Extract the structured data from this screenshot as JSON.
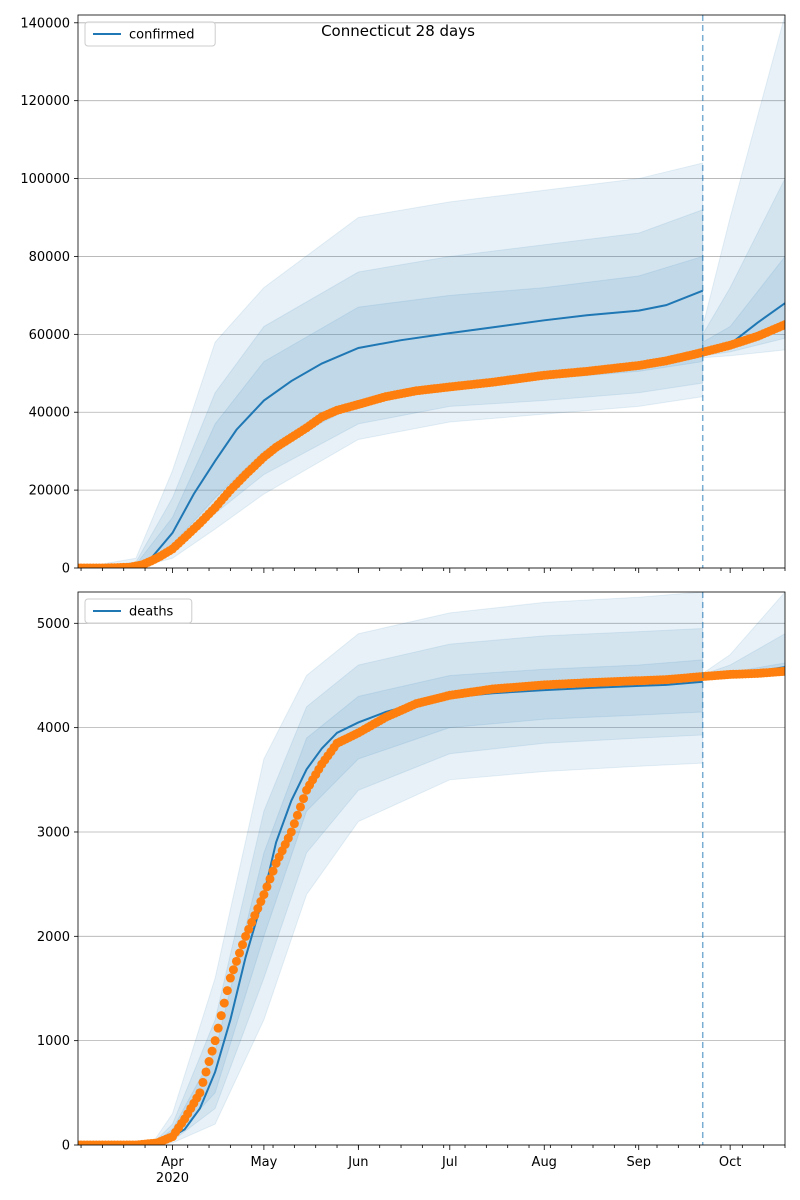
{
  "figure": {
    "title": "Connecticut 28 days"
  },
  "chart_data": [
    {
      "type": "line",
      "title": "Connecticut 28 days",
      "xlabel": "",
      "ylabel": "",
      "x_axis": {
        "range": [
          "2020-03-01",
          "2020-10-19"
        ],
        "tick_labels": [
          "Apr",
          "May",
          "Jun",
          "Jul",
          "Aug",
          "Sep",
          "Oct"
        ],
        "tick_dates": [
          "2020-04-01",
          "2020-05-01",
          "2020-06-01",
          "2020-07-01",
          "2020-08-01",
          "2020-09-01",
          "2020-10-01"
        ],
        "year_label": "2020"
      },
      "ylim": [
        0,
        142000
      ],
      "y_ticks": [
        0,
        20000,
        40000,
        60000,
        80000,
        100000,
        120000,
        140000
      ],
      "y_tick_labels": [
        "0",
        "20000",
        "40000",
        "60000",
        "80000",
        "100000",
        "120000",
        "140000"
      ],
      "grid": "horizontal",
      "legend": {
        "position": "top-left",
        "entries": [
          "confirmed"
        ]
      },
      "forecast_start": "2020-09-22",
      "colors": {
        "model": "#1f77b4",
        "observed": "#ff7f0e"
      },
      "series": [
        {
          "name": "confirmed",
          "kind": "model-median",
          "x": [
            "2020-03-01",
            "2020-03-15",
            "2020-03-20",
            "2020-03-25",
            "2020-04-01",
            "2020-04-08",
            "2020-04-15",
            "2020-04-22",
            "2020-05-01",
            "2020-05-10",
            "2020-05-20",
            "2020-06-01",
            "2020-06-15",
            "2020-07-01",
            "2020-07-15",
            "2020-08-01",
            "2020-08-15",
            "2020-09-01",
            "2020-09-10",
            "2020-09-22",
            "2020-09-22",
            "2020-10-01",
            "2020-10-10",
            "2020-10-19"
          ],
          "values": [
            0,
            0,
            400,
            2500,
            9000,
            19000,
            27500,
            35500,
            43000,
            48000,
            52500,
            56500,
            58500,
            60300,
            61800,
            63600,
            64900,
            66100,
            67500,
            71200,
            55200,
            57500,
            63000,
            68000
          ]
        },
        {
          "name": "",
          "kind": "model-band-inner",
          "x": [
            "2020-03-01",
            "2020-03-20",
            "2020-04-01",
            "2020-04-15",
            "2020-05-01",
            "2020-06-01",
            "2020-07-01",
            "2020-08-01",
            "2020-09-01",
            "2020-09-22",
            "2020-09-22",
            "2020-10-01",
            "2020-10-19"
          ],
          "lower": [
            0,
            200,
            6000,
            18000,
            30000,
            42000,
            47000,
            48500,
            50500,
            53000,
            55000,
            56500,
            62000
          ],
          "upper": [
            0,
            900,
            13000,
            37000,
            53000,
            67000,
            70000,
            72000,
            75000,
            80000,
            58000,
            62000,
            80000
          ]
        },
        {
          "name": "",
          "kind": "model-band-middle",
          "x": [
            "2020-03-01",
            "2020-03-20",
            "2020-04-01",
            "2020-04-15",
            "2020-05-01",
            "2020-06-01",
            "2020-07-01",
            "2020-08-01",
            "2020-09-01",
            "2020-09-22",
            "2020-09-22",
            "2020-10-01",
            "2020-10-19"
          ],
          "lower": [
            0,
            100,
            4000,
            14000,
            24000,
            37000,
            41500,
            43000,
            45000,
            47500,
            54500,
            55500,
            59000
          ],
          "upper": [
            0,
            1500,
            18000,
            45000,
            62000,
            76000,
            80000,
            83000,
            86000,
            92000,
            60000,
            72000,
            100000
          ]
        },
        {
          "name": "",
          "kind": "model-band-outer",
          "x": [
            "2020-03-01",
            "2020-03-20",
            "2020-04-01",
            "2020-04-15",
            "2020-05-01",
            "2020-06-01",
            "2020-07-01",
            "2020-08-01",
            "2020-09-01",
            "2020-09-22",
            "2020-09-22",
            "2020-10-01",
            "2020-10-19"
          ],
          "lower": [
            0,
            0,
            2500,
            10000,
            19000,
            33000,
            37500,
            39500,
            41500,
            44000,
            54000,
            54500,
            56000
          ],
          "upper": [
            0,
            2500,
            25000,
            58000,
            72000,
            90000,
            94000,
            97000,
            100000,
            104000,
            62000,
            90000,
            142000
          ]
        },
        {
          "name": "",
          "kind": "observed",
          "x": [
            "2020-03-01",
            "2020-03-10",
            "2020-03-18",
            "2020-03-22",
            "2020-03-25",
            "2020-03-28",
            "2020-04-01",
            "2020-04-05",
            "2020-04-10",
            "2020-04-15",
            "2020-04-20",
            "2020-04-25",
            "2020-05-01",
            "2020-05-05",
            "2020-05-10",
            "2020-05-15",
            "2020-05-20",
            "2020-05-25",
            "2020-06-01",
            "2020-06-10",
            "2020-06-20",
            "2020-07-01",
            "2020-07-15",
            "2020-08-01",
            "2020-08-15",
            "2020-09-01",
            "2020-09-10",
            "2020-09-20",
            "2020-09-25",
            "2020-10-01",
            "2020-10-10",
            "2020-10-19"
          ],
          "values": [
            0,
            0,
            200,
            800,
            1800,
            3000,
            4900,
            7800,
            11500,
            15500,
            20000,
            24000,
            28500,
            31000,
            33500,
            36000,
            38800,
            40500,
            42000,
            44000,
            45500,
            46500,
            47700,
            49500,
            50500,
            52000,
            53200,
            55000,
            56000,
            57200,
            59500,
            62500
          ]
        }
      ]
    },
    {
      "type": "line",
      "title": "",
      "xlabel": "",
      "ylabel": "",
      "x_axis": {
        "range": [
          "2020-03-01",
          "2020-10-19"
        ],
        "tick_labels": [
          "Apr",
          "May",
          "Jun",
          "Jul",
          "Aug",
          "Sep",
          "Oct"
        ],
        "tick_dates": [
          "2020-04-01",
          "2020-05-01",
          "2020-06-01",
          "2020-07-01",
          "2020-08-01",
          "2020-09-01",
          "2020-10-01"
        ],
        "year_label": "2020"
      },
      "ylim": [
        0,
        5300
      ],
      "y_ticks": [
        0,
        1000,
        2000,
        3000,
        4000,
        5000
      ],
      "y_tick_labels": [
        "0",
        "1000",
        "2000",
        "3000",
        "4000",
        "5000"
      ],
      "grid": "horizontal",
      "legend": {
        "position": "top-left",
        "entries": [
          "deaths"
        ]
      },
      "forecast_start": "2020-09-22",
      "colors": {
        "model": "#1f77b4",
        "observed": "#ff7f0e"
      },
      "series": [
        {
          "name": "deaths",
          "kind": "model-median",
          "x": [
            "2020-03-01",
            "2020-03-25",
            "2020-03-30",
            "2020-04-05",
            "2020-04-10",
            "2020-04-15",
            "2020-04-20",
            "2020-04-25",
            "2020-05-01",
            "2020-05-05",
            "2020-05-10",
            "2020-05-15",
            "2020-05-20",
            "2020-05-25",
            "2020-06-01",
            "2020-06-10",
            "2020-06-20",
            "2020-07-01",
            "2020-07-15",
            "2020-08-01",
            "2020-08-15",
            "2020-09-01",
            "2020-09-10",
            "2020-09-22",
            "2020-09-22",
            "2020-10-01",
            "2020-10-10",
            "2020-10-19"
          ],
          "values": [
            0,
            0,
            50,
            150,
            350,
            700,
            1200,
            1800,
            2400,
            2900,
            3300,
            3600,
            3800,
            3950,
            4050,
            4150,
            4230,
            4290,
            4330,
            4360,
            4380,
            4400,
            4410,
            4440,
            4500,
            4510,
            4540,
            4580
          ]
        },
        {
          "name": "",
          "kind": "model-band-inner",
          "x": [
            "2020-03-01",
            "2020-03-25",
            "2020-04-01",
            "2020-04-15",
            "2020-05-01",
            "2020-05-15",
            "2020-06-01",
            "2020-07-01",
            "2020-08-01",
            "2020-09-01",
            "2020-09-22",
            "2020-09-22",
            "2020-10-01",
            "2020-10-19"
          ],
          "lower": [
            0,
            0,
            60,
            500,
            2000,
            3200,
            3700,
            4000,
            4080,
            4120,
            4150,
            4500,
            4500,
            4500
          ],
          "upper": [
            0,
            0,
            150,
            900,
            2800,
            3900,
            4300,
            4500,
            4560,
            4600,
            4650,
            4500,
            4530,
            4620
          ]
        },
        {
          "name": "",
          "kind": "model-band-middle",
          "x": [
            "2020-03-01",
            "2020-03-25",
            "2020-04-01",
            "2020-04-15",
            "2020-05-01",
            "2020-05-15",
            "2020-06-01",
            "2020-07-01",
            "2020-08-01",
            "2020-09-01",
            "2020-09-22",
            "2020-09-22",
            "2020-10-01",
            "2020-10-19"
          ],
          "lower": [
            0,
            0,
            40,
            350,
            1600,
            2800,
            3400,
            3750,
            3850,
            3900,
            3930,
            4500,
            4500,
            4500
          ],
          "upper": [
            0,
            0,
            200,
            1200,
            3200,
            4200,
            4600,
            4800,
            4880,
            4920,
            4950,
            4510,
            4600,
            4900
          ]
        },
        {
          "name": "",
          "kind": "model-band-outer",
          "x": [
            "2020-03-01",
            "2020-03-25",
            "2020-04-01",
            "2020-04-15",
            "2020-05-01",
            "2020-05-15",
            "2020-06-01",
            "2020-07-01",
            "2020-08-01",
            "2020-09-01",
            "2020-09-22",
            "2020-09-22",
            "2020-10-01",
            "2020-10-19"
          ],
          "lower": [
            0,
            0,
            20,
            200,
            1200,
            2400,
            3100,
            3500,
            3580,
            3630,
            3660,
            4500,
            4500,
            4500
          ],
          "upper": [
            0,
            0,
            300,
            1600,
            3700,
            4500,
            4900,
            5100,
            5200,
            5250,
            5300,
            4520,
            4700,
            5300
          ]
        },
        {
          "name": "",
          "kind": "observed",
          "x": [
            "2020-03-01",
            "2020-03-20",
            "2020-03-27",
            "2020-04-01",
            "2020-04-05",
            "2020-04-10",
            "2020-04-15",
            "2020-04-20",
            "2020-04-25",
            "2020-05-01",
            "2020-05-05",
            "2020-05-10",
            "2020-05-15",
            "2020-05-20",
            "2020-05-25",
            "2020-06-01",
            "2020-06-10",
            "2020-06-20",
            "2020-07-01",
            "2020-07-15",
            "2020-08-01",
            "2020-08-15",
            "2020-09-01",
            "2020-09-10",
            "2020-09-22",
            "2020-10-01",
            "2020-10-10",
            "2020-10-19"
          ],
          "values": [
            0,
            0,
            20,
            80,
            250,
            500,
            1000,
            1600,
            2000,
            2400,
            2700,
            3000,
            3400,
            3650,
            3850,
            3950,
            4100,
            4230,
            4310,
            4370,
            4410,
            4430,
            4450,
            4460,
            4490,
            4510,
            4520,
            4540
          ]
        }
      ]
    }
  ]
}
